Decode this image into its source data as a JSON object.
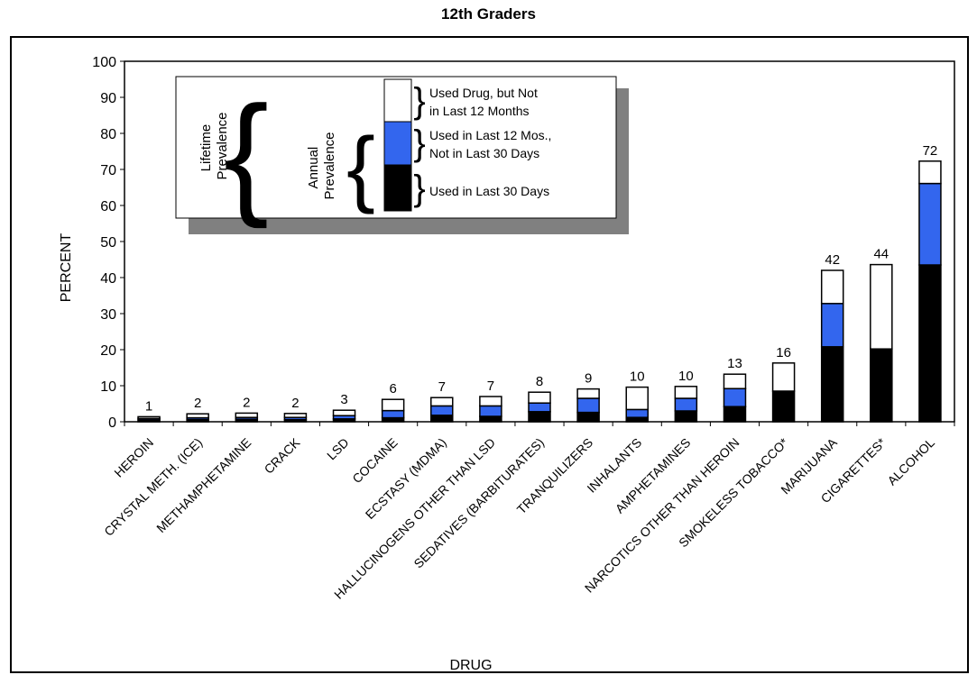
{
  "chart_data": {
    "type": "bar",
    "stacked": true,
    "title": "12th Graders",
    "xlabel": "DRUG",
    "ylabel": "PERCENT",
    "ylim": [
      0,
      100
    ],
    "yticks": [
      0,
      10,
      20,
      30,
      40,
      50,
      60,
      70,
      80,
      90,
      100
    ],
    "grid": false,
    "categories": [
      "HEROIN",
      "CRYSTAL METH. (ICE)",
      "METHAMPHETAMINE",
      "CRACK",
      "LSD",
      "COCAINE",
      "ECSTASY (MDMA)",
      "HALLUCINOGENS OTHER THAN LSD",
      "SEDATIVES (BARBITURATES)",
      "TRANQUILIZERS",
      "INHALANTS",
      "AMPHETAMINES",
      "NARCOTICS OTHER THAN HEROIN",
      "SMOKELESS TOBACCO*",
      "MARIJUANA",
      "CIGARETTES*",
      "ALCOHOL"
    ],
    "totals_labels": [
      "1",
      "2",
      "2",
      "2",
      "3",
      "6",
      "7",
      "7",
      "8",
      "9",
      "10",
      "10",
      "13",
      "16",
      "42",
      "44",
      "72"
    ],
    "series": [
      {
        "name": "Used in Last 30 Days",
        "color": "#000000",
        "values": [
          0.5,
          0.6,
          0.7,
          0.6,
          0.8,
          1.1,
          1.8,
          1.5,
          2.8,
          2.6,
          1.2,
          3.0,
          4.2,
          8.5,
          20.8,
          20.2,
          43.5
        ]
      },
      {
        "name": "Used in Last 12 Mos., Not in Last 30 Days",
        "color": "#3366ee",
        "values": [
          0.4,
          0.5,
          0.5,
          0.6,
          0.9,
          2.0,
          2.6,
          2.9,
          2.4,
          3.9,
          2.2,
          3.5,
          5.0,
          0,
          12.0,
          0,
          22.6
        ]
      },
      {
        "name": "Used Drug, but Not in Last 12 Months",
        "color": "#ffffff",
        "values": [
          0.5,
          1.1,
          1.2,
          1.1,
          1.5,
          3.1,
          2.3,
          2.6,
          3.0,
          2.6,
          6.2,
          3.3,
          4.0,
          7.8,
          9.2,
          23.4,
          6.2
        ]
      }
    ]
  },
  "legend": {
    "lifetime_label_line1": "Lifetime",
    "lifetime_label_line2": "Prevalence",
    "annual_label_line1": "Annual",
    "annual_label_line2": "Prevalence",
    "item_top_line1": "Used Drug, but Not",
    "item_top_line2": "in Last 12 Months",
    "item_mid_line1": "Used in Last 12 Mos.,",
    "item_mid_line2": "Not in Last 30 Days",
    "item_bottom": "Used in Last 30 Days",
    "placement": "top-left"
  }
}
